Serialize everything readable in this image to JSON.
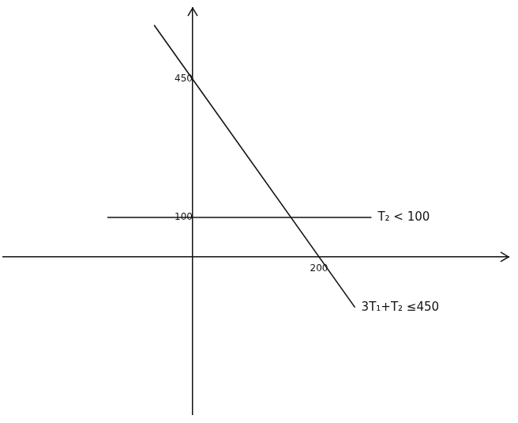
{
  "chart_data": {
    "type": "line",
    "series": [
      {
        "name": "T₂ < 100",
        "color": "#111111",
        "x": [
          -135,
          283
        ],
        "values": [
          100,
          100
        ]
      },
      {
        "name": "3T₁+T₂ ≤450",
        "color": "#111111",
        "x": [
          -61,
          257
        ],
        "values": [
          587,
          -128
        ]
      }
    ],
    "xlim": [
      -300,
      500
    ],
    "xticks": [
      200
    ],
    "ylim": [
      -400,
      630
    ],
    "yticks": [
      100,
      450
    ],
    "grid": false
  }
}
